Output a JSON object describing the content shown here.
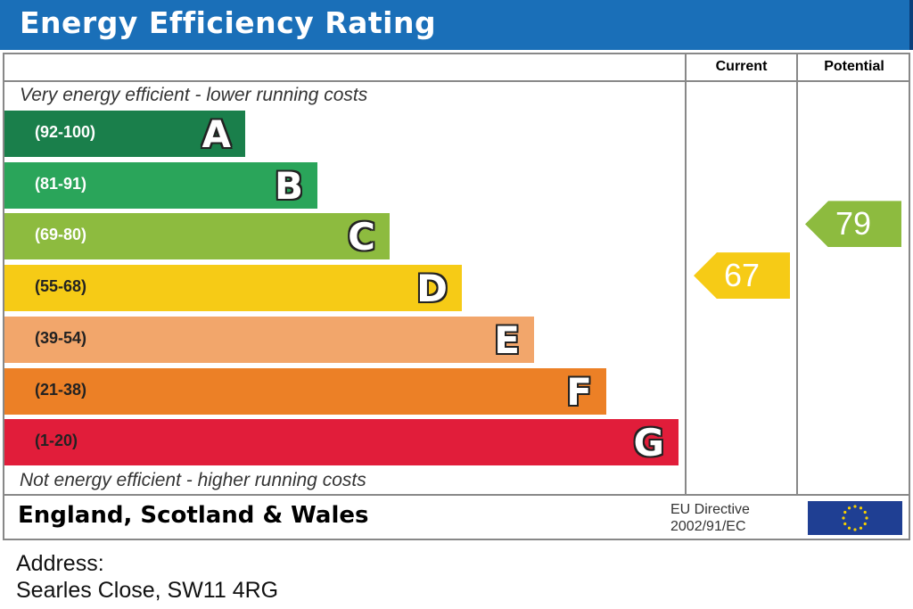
{
  "title": "Energy Efficiency Rating",
  "columns": {
    "current": "Current",
    "potential": "Potential"
  },
  "notes": {
    "top": "Very energy efficient - lower running costs",
    "bottom": "Not energy efficient - higher running costs"
  },
  "footer": {
    "region": "England, Scotland & Wales",
    "directive_line1": "EU Directive",
    "directive_line2": "2002/91/EC"
  },
  "address": {
    "label": "Address:",
    "value": "Searles Close, SW11 4RG"
  },
  "chart_data": {
    "type": "bar",
    "title": "Energy Efficiency Rating",
    "categories": [
      "A",
      "B",
      "C",
      "D",
      "E",
      "F",
      "G"
    ],
    "ranges": [
      "(92-100)",
      "(81-91)",
      "(69-80)",
      "(55-68)",
      "(39-54)",
      "(21-38)",
      "(1-20)"
    ],
    "values": [
      100,
      91,
      80,
      68,
      54,
      38,
      20
    ],
    "colors": [
      "#1a7f4b",
      "#2aa55a",
      "#8dbb3f",
      "#f6cb16",
      "#f2a66b",
      "#ec8026",
      "#e11d3a"
    ],
    "current": {
      "label": "Current",
      "value": 67,
      "color": "#f6cb16"
    },
    "potential": {
      "label": "Potential",
      "value": 79,
      "color": "#8dbb3f"
    }
  }
}
